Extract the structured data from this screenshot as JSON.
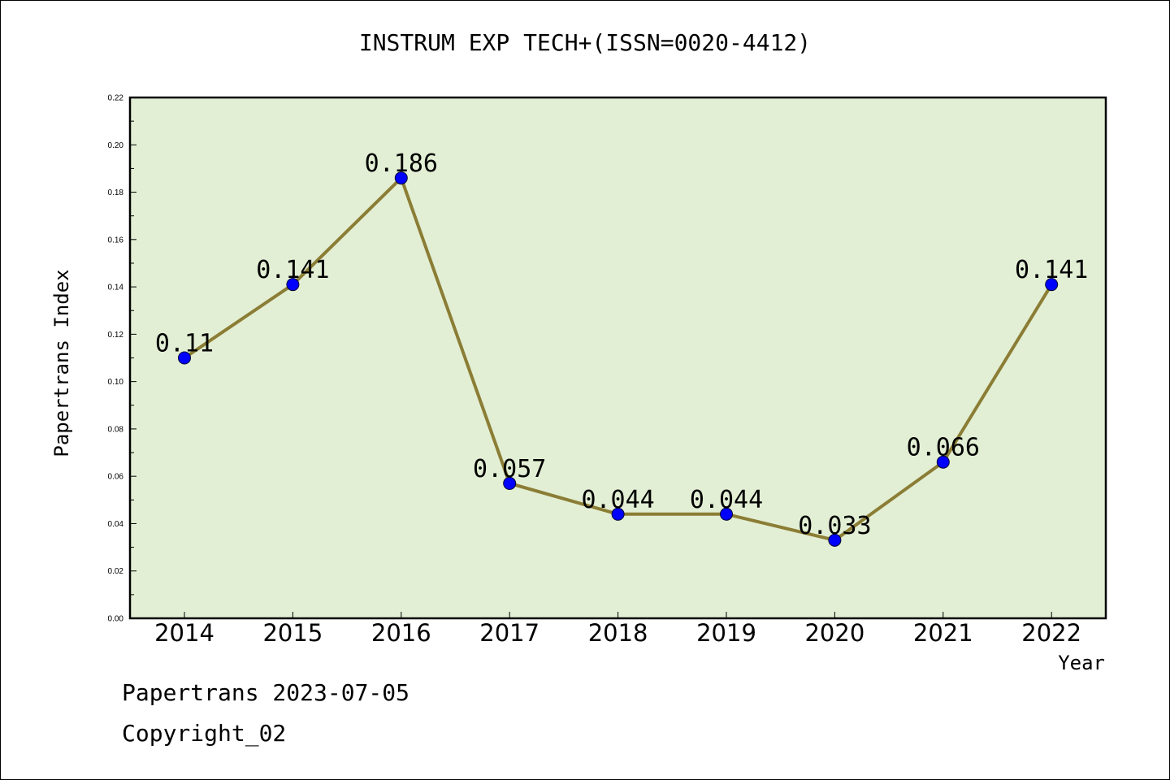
{
  "page": {
    "title": "INSTRUM EXP TECH+(ISSN=0020-4412)",
    "footer": {
      "date_line": "Papertrans 2023-07-05",
      "copyright_line": "Copyright_02"
    }
  },
  "colors": {
    "plot_background": "#e2efd4",
    "line": "#8b7d35",
    "marker": "#0000ff",
    "axis": "#000000"
  },
  "chart_data": {
    "type": "line",
    "title": "INSTRUM EXP TECH+(ISSN=0020-4412)",
    "xlabel": "Year",
    "ylabel": "Papertrans Index",
    "categories": [
      "2014",
      "2015",
      "2016",
      "2017",
      "2018",
      "2019",
      "2020",
      "2021",
      "2022"
    ],
    "series": [
      {
        "values": [
          0.11,
          0.141,
          0.186,
          0.057,
          0.044,
          0.044,
          0.033,
          0.066,
          0.141
        ],
        "data_labels": [
          "0.11",
          "0.141",
          "0.186",
          "0.057",
          "0.044",
          "0.044",
          "0.033",
          "0.066",
          "0.141"
        ]
      }
    ],
    "ylim": [
      0,
      0.22
    ],
    "yticks": [
      "0.00",
      "0.02",
      "0.04",
      "0.06",
      "0.08",
      "0.10",
      "0.12",
      "0.14",
      "0.16",
      "0.18",
      "0.20",
      "0.22"
    ],
    "grid": false,
    "legend": "none"
  }
}
